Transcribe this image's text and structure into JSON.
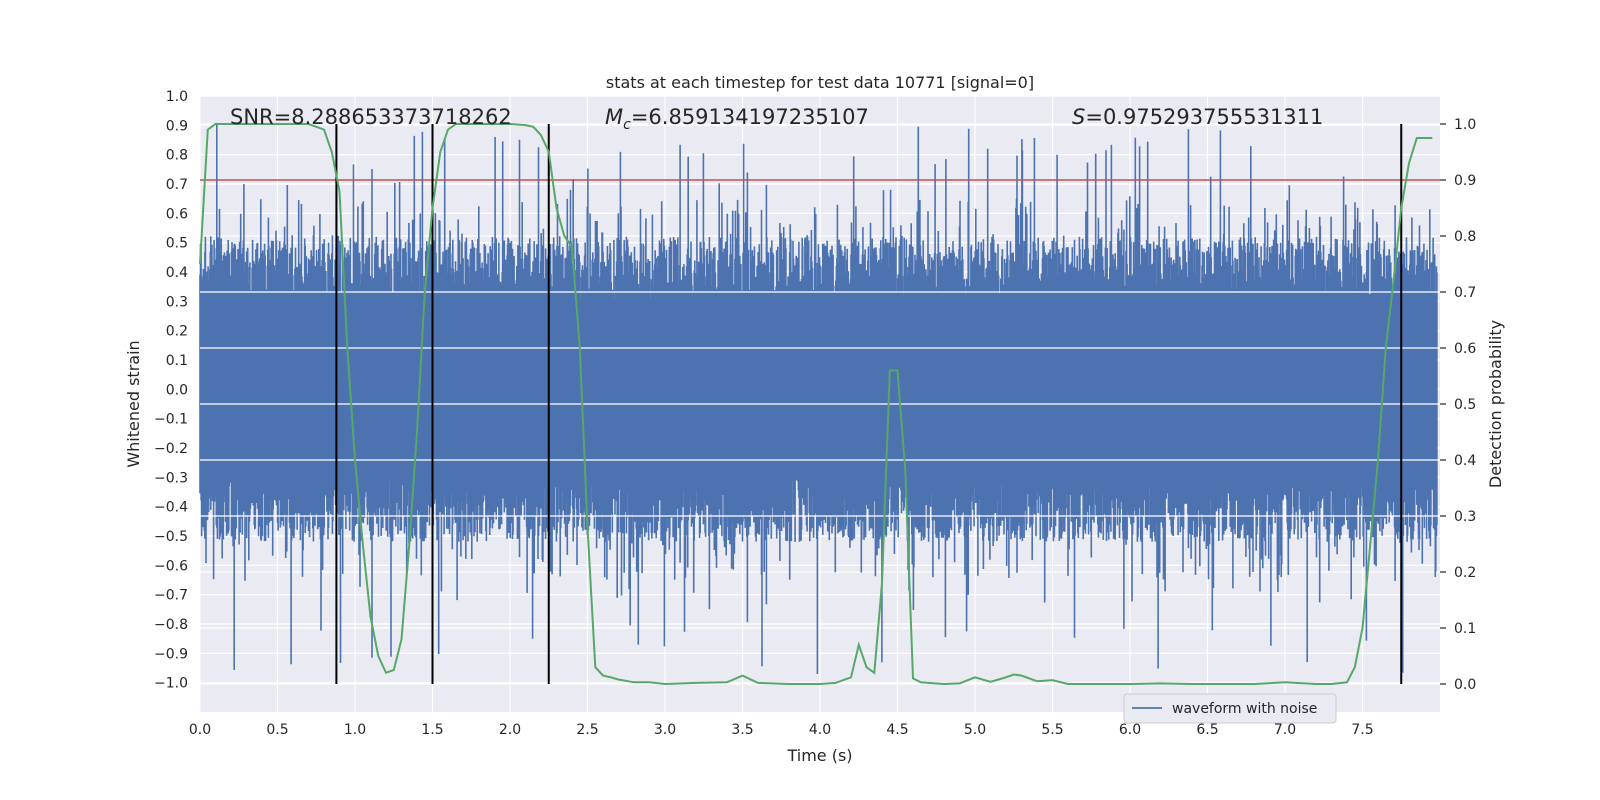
{
  "chart_data": {
    "type": "line",
    "title": "stats at each timestep for test data 10771 [signal=0]",
    "xlabel": "Time (s)",
    "ylabel": "Whitened strain",
    "y2label": "Detection probability",
    "xlim": [
      0.0,
      8.0
    ],
    "ylim": [
      -1.1,
      1.0
    ],
    "y2lim": [
      -0.05,
      1.05
    ],
    "xticks": [
      "0.0",
      "0.5",
      "1.0",
      "1.5",
      "2.0",
      "2.5",
      "3.0",
      "3.5",
      "4.0",
      "4.5",
      "5.0",
      "5.5",
      "6.0",
      "6.5",
      "7.0",
      "7.5"
    ],
    "yticks": [
      "1.0",
      "0.9",
      "0.8",
      "0.7",
      "0.6",
      "0.5",
      "0.4",
      "0.3",
      "0.2",
      "0.1",
      "0.0",
      "−0.1",
      "−0.2",
      "−0.3",
      "−0.4",
      "−0.5",
      "−0.6",
      "−0.7",
      "−0.8",
      "−0.9",
      "−1.0"
    ],
    "y2ticks": [
      "1.0",
      "0.9",
      "0.8",
      "0.7",
      "0.6",
      "0.5",
      "0.4",
      "0.3",
      "0.2",
      "0.1",
      "0.0"
    ],
    "annotations": {
      "snr": "SNR=8.288653373718262",
      "mc_symbol": "M",
      "mc_sub": "c",
      "mc_value": "=6.859134197235107",
      "s_symbol": "S",
      "s_value": "=0.975293755531311"
    },
    "legend": {
      "label": "waveform with noise",
      "placement": "lower-right"
    },
    "colors": {
      "waveform": "#4c72b0",
      "probability": "#55a868",
      "threshold": "#c44e52",
      "marker": "#000000",
      "background": "#eaeaf2",
      "grid": "#ffffff"
    },
    "threshold_probability": 0.9,
    "event_markers_x": [
      0.88,
      1.5,
      2.25,
      7.75
    ],
    "waveform_envelope": {
      "seed": 10771,
      "duration": 8.0,
      "typical_high": 0.5,
      "typical_low": -0.5,
      "max_peak": 0.92,
      "min_trough": -1.0
    },
    "probability": {
      "x": [
        0.0,
        0.05,
        0.1,
        0.2,
        0.3,
        0.4,
        0.5,
        0.6,
        0.7,
        0.8,
        0.85,
        0.9,
        0.95,
        1.0,
        1.05,
        1.1,
        1.15,
        1.2,
        1.25,
        1.3,
        1.35,
        1.4,
        1.45,
        1.5,
        1.55,
        1.6,
        1.65,
        1.7,
        1.8,
        1.9,
        2.0,
        2.1,
        2.15,
        2.2,
        2.25,
        2.3,
        2.35,
        2.4,
        2.45,
        2.5,
        2.55,
        2.6,
        2.65,
        2.7,
        2.8,
        2.9,
        3.0,
        3.2,
        3.4,
        3.5,
        3.6,
        3.8,
        4.0,
        4.1,
        4.2,
        4.25,
        4.3,
        4.35,
        4.4,
        4.45,
        4.5,
        4.55,
        4.6,
        4.65,
        4.7,
        4.8,
        4.9,
        5.0,
        5.1,
        5.2,
        5.25,
        5.3,
        5.4,
        5.5,
        5.6,
        5.7,
        5.8,
        6.0,
        6.2,
        6.4,
        6.6,
        6.8,
        7.0,
        7.2,
        7.3,
        7.4,
        7.45,
        7.5,
        7.55,
        7.6,
        7.65,
        7.7,
        7.75,
        7.8,
        7.85,
        7.9,
        7.95
      ],
      "y": [
        0.75,
        0.99,
        1.0,
        1.0,
        1.0,
        1.0,
        1.0,
        1.0,
        1.0,
        0.99,
        0.95,
        0.88,
        0.6,
        0.4,
        0.25,
        0.12,
        0.05,
        0.02,
        0.025,
        0.08,
        0.25,
        0.45,
        0.7,
        0.85,
        0.95,
        0.99,
        1.0,
        1.0,
        1.0,
        1.0,
        1.0,
        0.998,
        0.995,
        0.98,
        0.95,
        0.85,
        0.8,
        0.78,
        0.6,
        0.28,
        0.03,
        0.015,
        0.012,
        0.008,
        0.003,
        0.003,
        0.0,
        0.002,
        0.003,
        0.015,
        0.002,
        0.0,
        0.0,
        0.002,
        0.012,
        0.07,
        0.03,
        0.02,
        0.18,
        0.56,
        0.56,
        0.38,
        0.01,
        0.003,
        0.002,
        0.0,
        0.001,
        0.012,
        0.004,
        0.012,
        0.017,
        0.015,
        0.005,
        0.007,
        0.0,
        0.0,
        0.0,
        0.0,
        0.001,
        0.0,
        0.0,
        0.0,
        0.003,
        0.0,
        0.0,
        0.003,
        0.03,
        0.1,
        0.25,
        0.4,
        0.6,
        0.72,
        0.85,
        0.93,
        0.975,
        0.975,
        0.975
      ]
    }
  }
}
